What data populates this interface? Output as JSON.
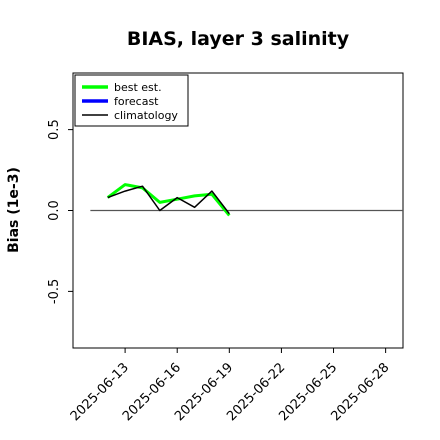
{
  "chart_data": {
    "type": "line",
    "title": "BIAS, layer 3 salinity",
    "xlabel": "",
    "ylabel": "Bias (1e-3)",
    "xlim": [
      "2025-06-10",
      "2025-06-29"
    ],
    "ylim": [
      -0.85,
      0.85
    ],
    "xticks": [
      "2025-06-13",
      "2025-06-16",
      "2025-06-19",
      "2025-06-22",
      "2025-06-25",
      "2025-06-28"
    ],
    "xtick_highlight": "2025-06-19",
    "yticks": [
      -0.5,
      0.0,
      0.5
    ],
    "ytick_labels": [
      "-0.5",
      "0.0",
      "0.5"
    ],
    "grid": false,
    "legend_position": "top-left",
    "zero_line": {
      "from": "2025-06-11",
      "to": "2025-06-29",
      "value": 0.0
    },
    "series": [
      {
        "name": "best est.",
        "color": "#00ff00",
        "x": [
          "2025-06-12",
          "2025-06-13",
          "2025-06-14",
          "2025-06-15",
          "2025-06-16",
          "2025-06-17",
          "2025-06-18",
          "2025-06-19"
        ],
        "values": [
          0.08,
          0.16,
          0.14,
          0.05,
          0.07,
          0.09,
          0.1,
          -0.03
        ]
      },
      {
        "name": "forecast",
        "color": "#0000ff",
        "x": [],
        "values": []
      },
      {
        "name": "climatology",
        "color": "#000000",
        "x": [
          "2025-06-12",
          "2025-06-13",
          "2025-06-14",
          "2025-06-15",
          "2025-06-16",
          "2025-06-17",
          "2025-06-18",
          "2025-06-19"
        ],
        "values": [
          0.08,
          0.12,
          0.15,
          0.0,
          0.08,
          0.02,
          0.12,
          -0.02
        ]
      }
    ],
    "colors": {
      "axis": "#000000",
      "highlight_tick": "#228b22"
    }
  }
}
